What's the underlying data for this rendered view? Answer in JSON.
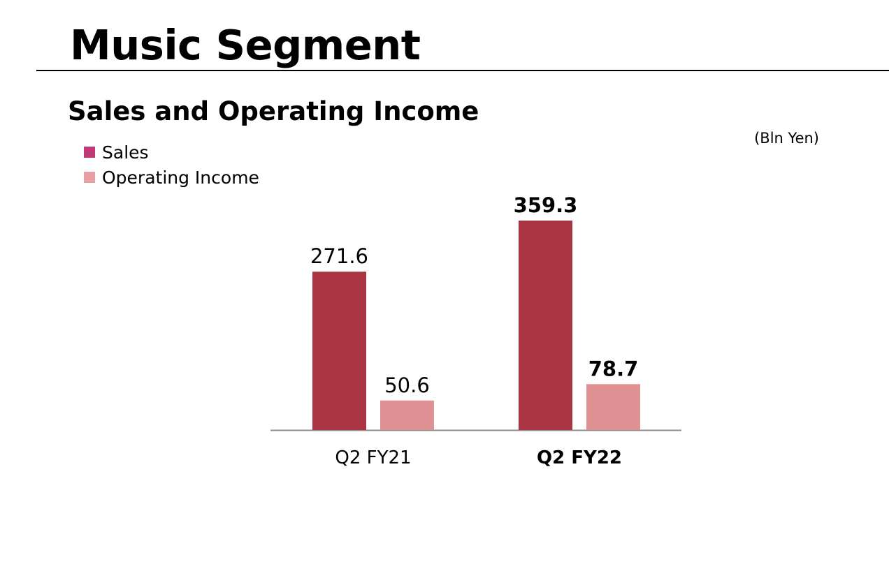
{
  "page": {
    "title": "Music Segment",
    "section_title": "Sales and Operating Income",
    "unit": "(Bln Yen)"
  },
  "legend": [
    {
      "label": "Sales",
      "color": "#c0387a"
    },
    {
      "label": "Operating Income",
      "color": "#e5a0a3"
    }
  ],
  "chart_data": {
    "type": "bar",
    "title": "Sales and Operating Income",
    "categories": [
      "Q2 FY21",
      "Q2 FY22"
    ],
    "series": [
      {
        "name": "Sales",
        "values": [
          271.6,
          359.3
        ],
        "color": "#ab3443"
      },
      {
        "name": "Operating Income",
        "values": [
          50.6,
          78.7
        ],
        "color": "#e09193"
      }
    ],
    "data_labels": [
      [
        "271.6",
        "359.3"
      ],
      [
        "50.6",
        "78.7"
      ]
    ],
    "emphasized_category": "Q2 FY22",
    "ylim": [
      0,
      359.3
    ],
    "y_axis_shown": false,
    "grid": false,
    "legend_position": "top-left"
  }
}
